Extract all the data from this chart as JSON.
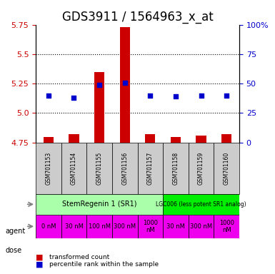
{
  "title": "GDS3911 / 1564963_x_at",
  "samples": [
    "GSM701153",
    "GSM701154",
    "GSM701155",
    "GSM701156",
    "GSM701157",
    "GSM701158",
    "GSM701159",
    "GSM701160"
  ],
  "bar_values": [
    4.8,
    4.82,
    5.35,
    5.73,
    4.82,
    4.8,
    4.81,
    4.82
  ],
  "bar_base": 4.75,
  "dot_values": [
    5.15,
    5.13,
    5.24,
    5.26,
    5.15,
    5.14,
    5.15,
    5.15
  ],
  "ylim": [
    4.75,
    5.75
  ],
  "yticks_left": [
    4.75,
    5.0,
    5.25,
    5.5,
    5.75
  ],
  "yticks_right": [
    0,
    25,
    50,
    75,
    100
  ],
  "bar_color": "#cc0000",
  "dot_color": "#0000cc",
  "grid_color": "#000000",
  "grid_linestyle": "dotted",
  "agent_row1": {
    "label": "StemRegenin 1 (SR1)",
    "color": "#aaffaa",
    "span": [
      0,
      5
    ]
  },
  "agent_row2": {
    "label": "LGC006 (less potent SR1 analog)",
    "color": "#00ee00",
    "span": [
      5,
      8
    ]
  },
  "dose_labels": [
    "0 nM",
    "30 nM",
    "100 nM",
    "300 nM",
    "1000\nnM",
    "30 nM",
    "300 nM",
    "1000\nnM"
  ],
  "dose_color": "#ee00ee",
  "sample_box_color": "#cccccc",
  "bg_color": "#ffffff",
  "title_fontsize": 12,
  "tick_fontsize": 8,
  "label_fontsize": 8
}
